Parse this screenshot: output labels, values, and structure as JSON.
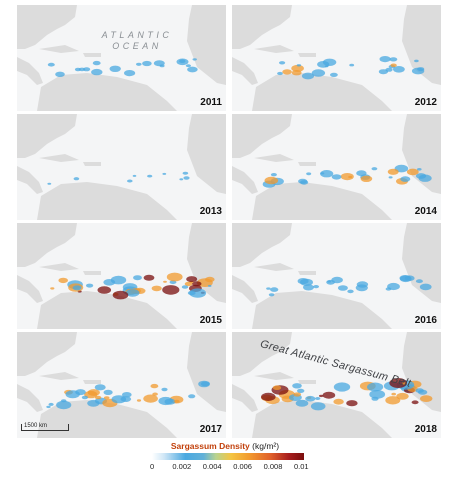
{
  "panels": [
    {
      "year": "2011",
      "density": 0.35
    },
    {
      "year": "2012",
      "density": 0.5
    },
    {
      "year": "2013",
      "density": 0.08
    },
    {
      "year": "2014",
      "density": 0.55
    },
    {
      "year": "2015",
      "density": 0.95
    },
    {
      "year": "2016",
      "density": 0.45
    },
    {
      "year": "2017",
      "density": 0.75
    },
    {
      "year": "2018",
      "density": 1.0
    }
  ],
  "ocean_label": [
    "ATLANTIC",
    "OCEAN"
  ],
  "belt_label": "Great Atlantic Sargassum Belt",
  "scale": "1500 km",
  "legend": {
    "title": "Sargassum Density",
    "unit": "(kg/m²)",
    "ticks": [
      "0",
      "0.002",
      "0.004",
      "0.006",
      "0.008",
      "0.01"
    ]
  },
  "colors": {
    "land": "#dcdcdc",
    "ocean": "#f4f5f6",
    "low": "#4aa8e0",
    "mid": "#f29a2e",
    "high": "#7a0d0d"
  }
}
